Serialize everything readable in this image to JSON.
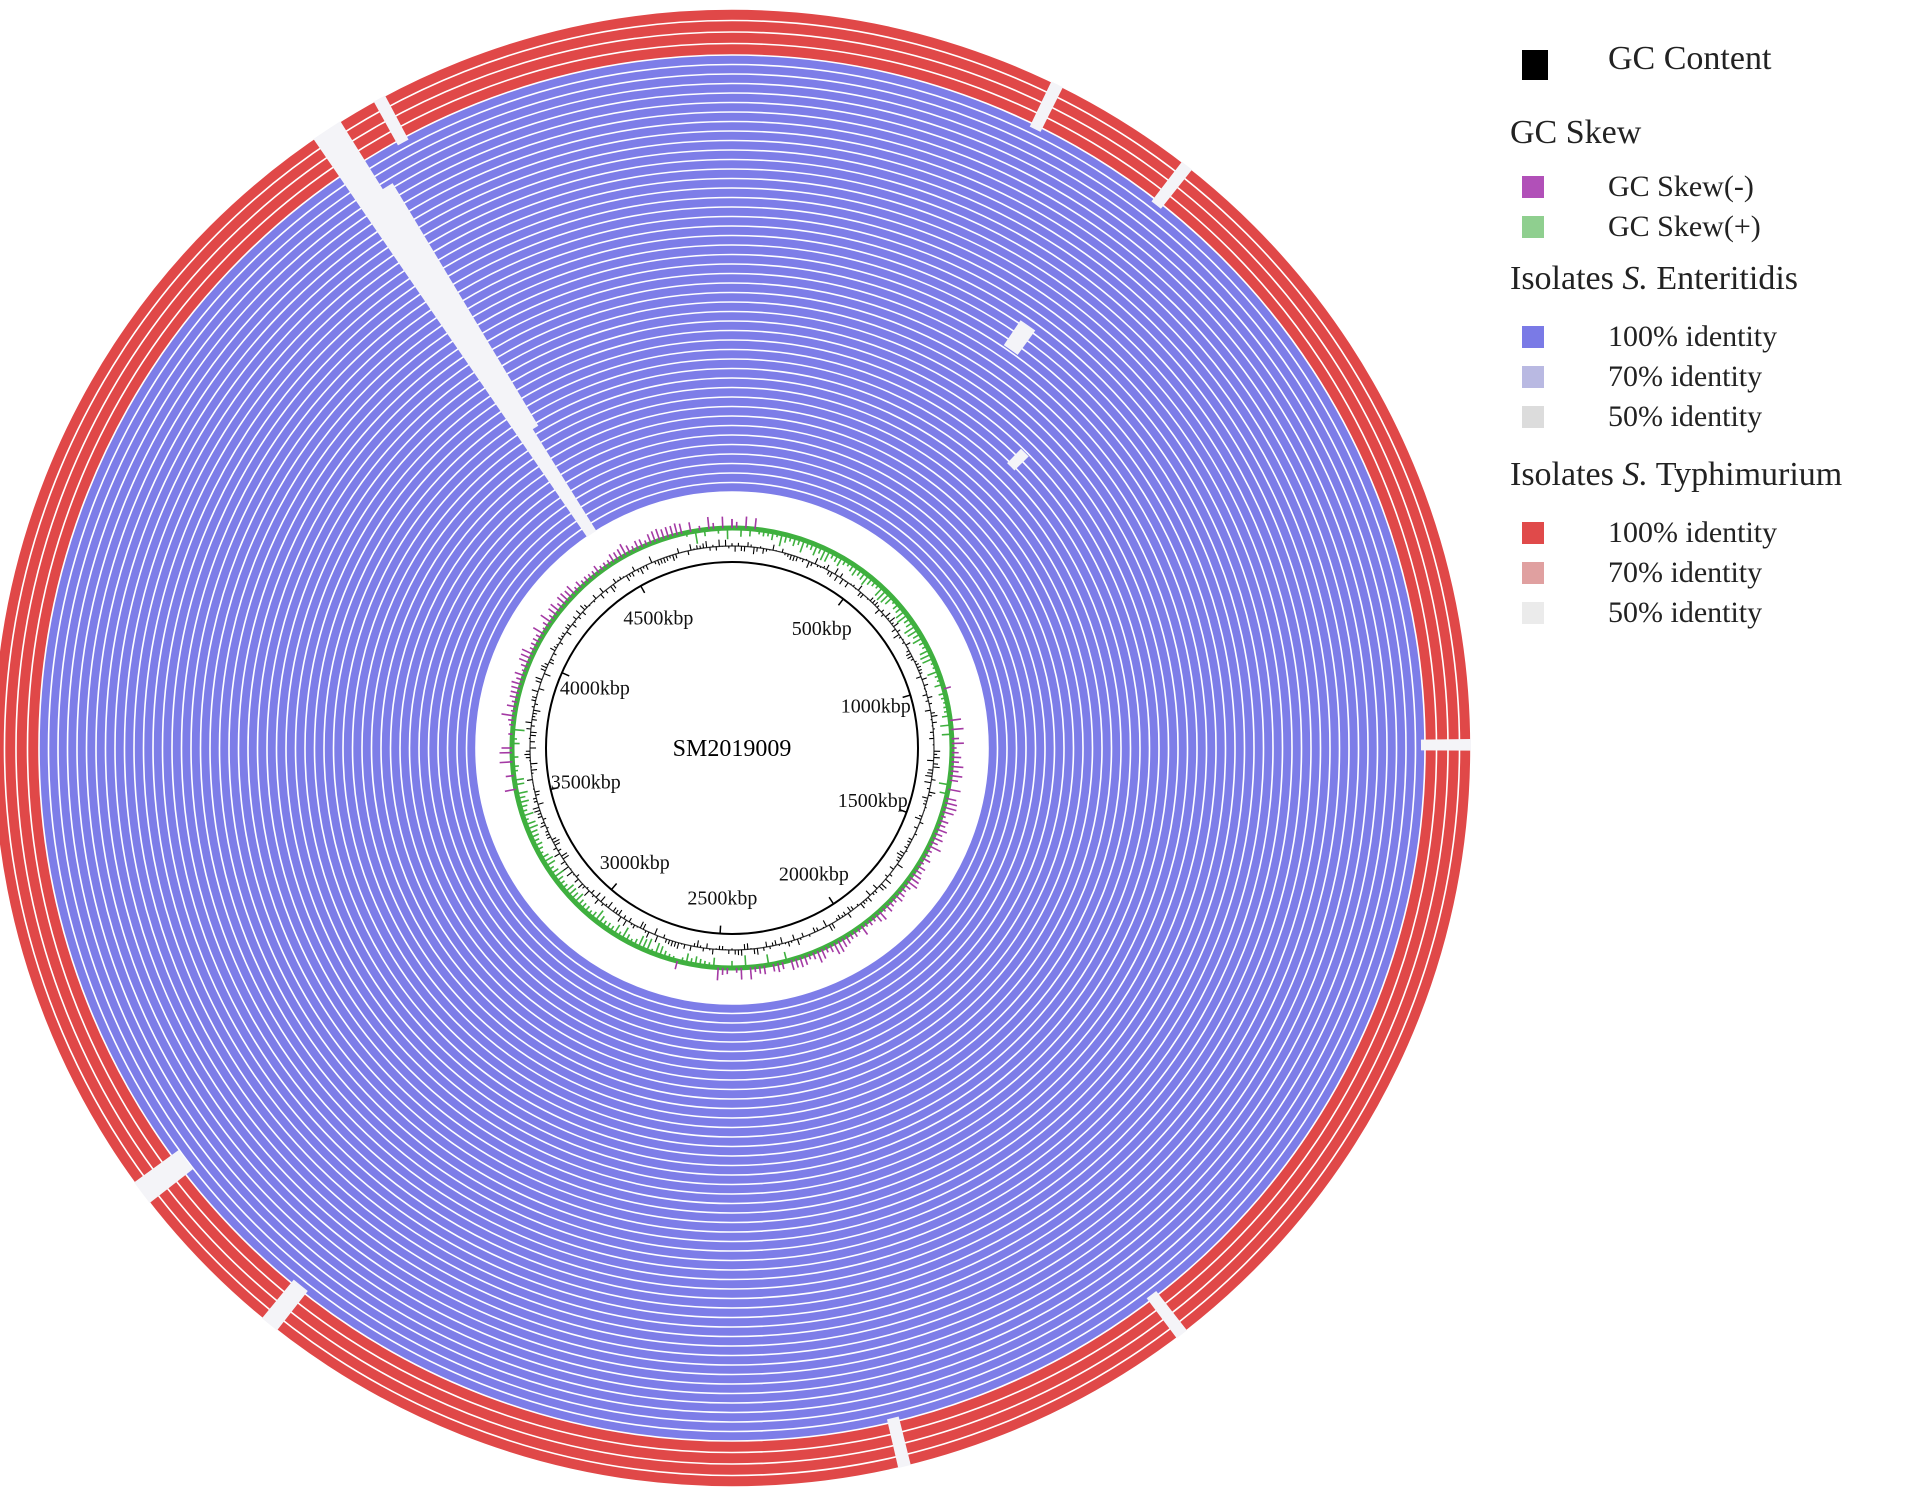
{
  "figure": {
    "center_label": "SM2019009",
    "genome_size_kbp": 4900,
    "tick_step_kbp": 500,
    "tick_labels": [
      "500kbp",
      "1000kbp",
      "1500kbp",
      "2000kbp",
      "2500kbp",
      "3000kbp",
      "3500kbp",
      "4000kbp",
      "4500kbp"
    ],
    "enteritidis_ring_count": 46,
    "typhimurium_ring_count": 4
  },
  "legend": {
    "gc_content": "GC Content",
    "gc_skew_title": "GC Skew",
    "gc_skew_neg": "GC Skew(-)",
    "gc_skew_pos": "GC Skew(+)",
    "enteritidis_title_prefix": "Isolates ",
    "enteritidis_title_genus": "S.",
    "enteritidis_title_species": " Enteritidis",
    "typhimurium_title_prefix": "Isolates ",
    "typhimurium_title_genus": "S.",
    "typhimurium_title_species": " Typhimurium",
    "identity_100": "100% identity",
    "identity_70": "70% identity",
    "identity_50": "50% identity"
  },
  "colors": {
    "gc_content": "#000000",
    "gc_skew_neg": "#b150b8",
    "gc_skew_pos": "#8fcf8f",
    "enteritidis_100": "#7a7ae6",
    "enteritidis_70": "#b9b9e2",
    "enteritidis_50": "#dcdcdc",
    "typhimurium_100": "#e04a4a",
    "typhimurium_70": "#e0a0a0",
    "typhimurium_50": "#ebebeb",
    "ring_blue": "#7d7de8",
    "ring_red": "#e04848",
    "skew_green": "#3fb03f",
    "skew_purple": "#a43aa4"
  }
}
